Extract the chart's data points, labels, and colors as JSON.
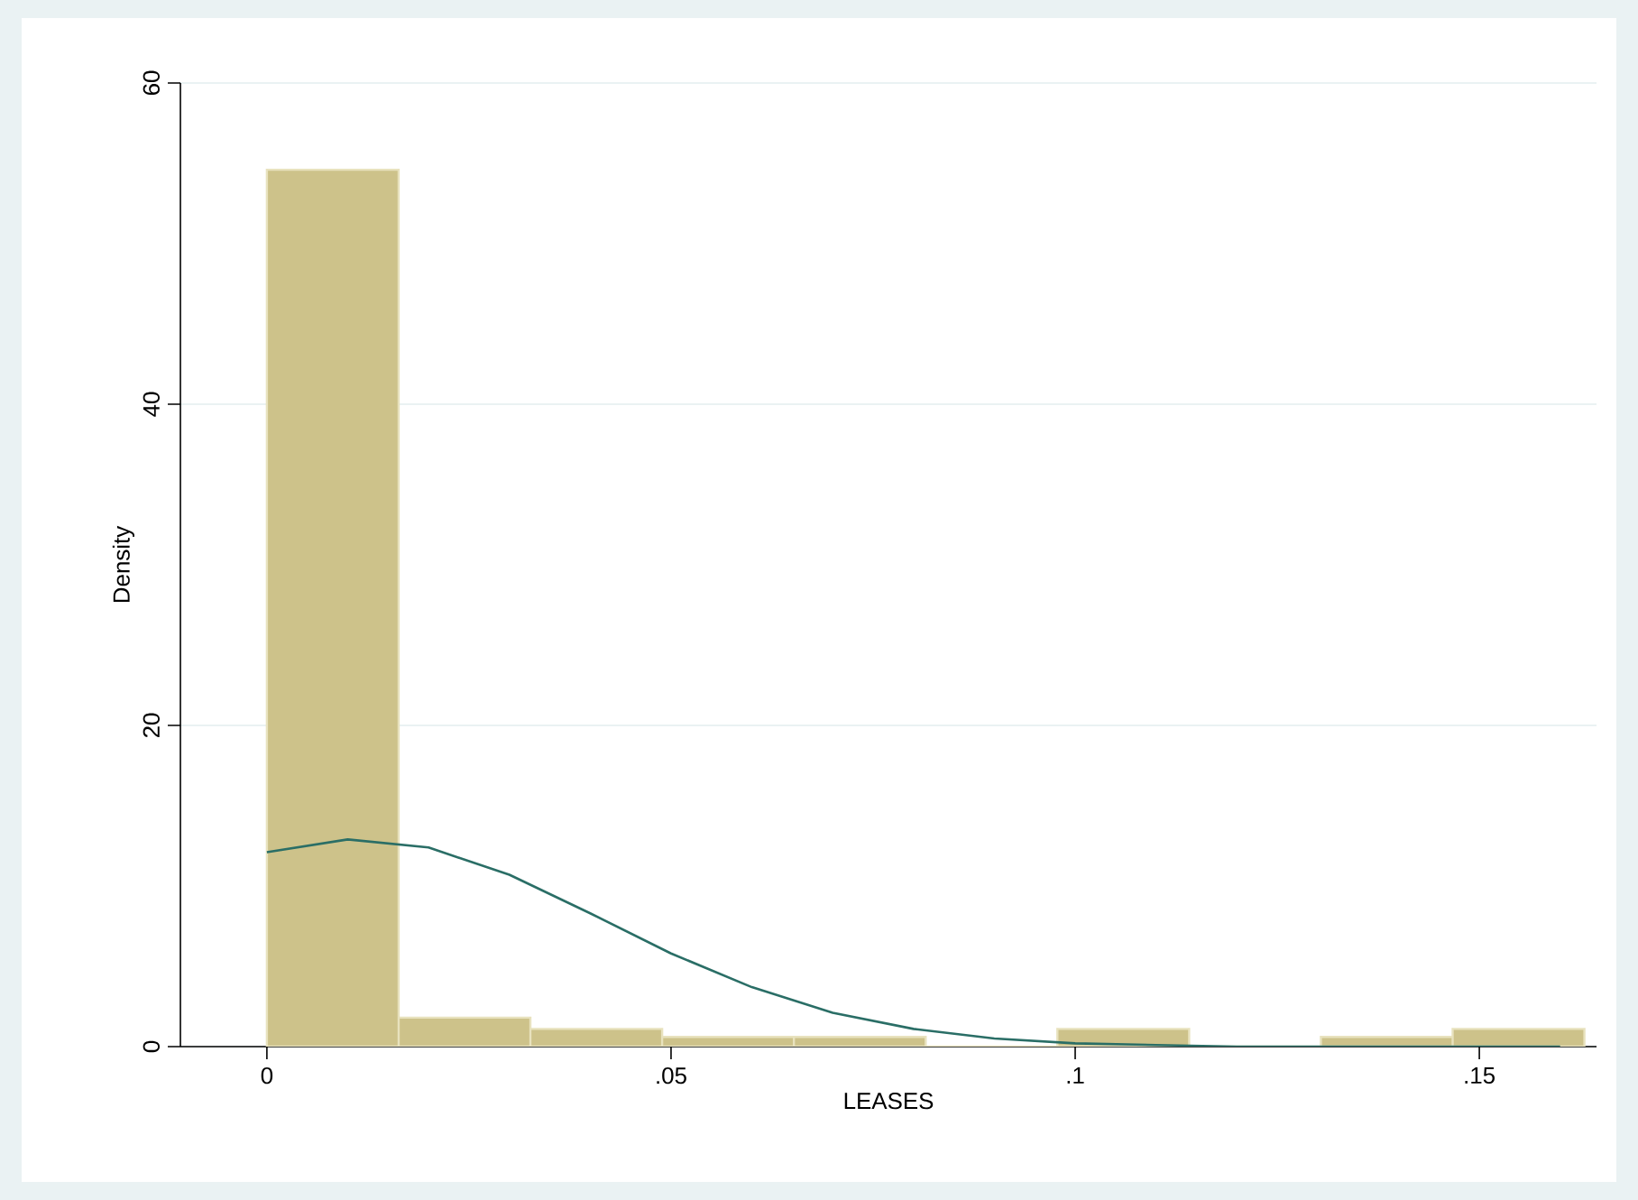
{
  "chart_data": {
    "type": "histogram",
    "xlabel": "LEASES",
    "ylabel": "Density",
    "bins": [
      0,
      0.0163,
      0.0326,
      0.0489,
      0.0652,
      0.0815,
      0.0978,
      0.1141,
      0.1304,
      0.1467,
      0.163
    ],
    "values": [
      54.6,
      1.8,
      1.1,
      0.6,
      0.6,
      0,
      1.1,
      0,
      0.6,
      1.1
    ],
    "color": "#cdc28a",
    "series": [
      {
        "type": "line",
        "color": "#2a6e66",
        "x": [
          0,
          0.01,
          0.02,
          0.03,
          0.04,
          0.05,
          0.06,
          0.07,
          0.08,
          0.09,
          0.1,
          0.11,
          0.12,
          0.13,
          0.14,
          0.15,
          0.16
        ],
        "values": [
          12.1,
          12.9,
          12.4,
          10.7,
          8.3,
          5.8,
          3.7,
          2.1,
          1.1,
          0.5,
          0.2,
          0.1,
          0,
          0,
          0,
          0,
          0
        ]
      }
    ],
    "xlim": [
      -0.0107,
      0.1645
    ],
    "ylim": [
      0,
      60
    ],
    "xticks": [
      0,
      {
        "value": 0.05,
        "label": ".05"
      },
      {
        "value": 0.1,
        "label": ".1"
      },
      {
        "value": 0.15,
        "label": ".15"
      }
    ],
    "yticks": [
      0,
      20,
      40,
      60
    ],
    "grid": "y"
  }
}
